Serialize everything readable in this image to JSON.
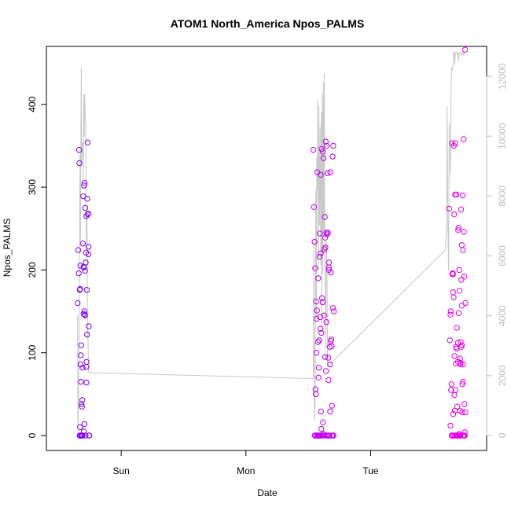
{
  "chart_data": {
    "type": "scatter",
    "title": "ATOM1 North_America Npos_PALMS",
    "xlabel": "Date",
    "ylabel": "Npos_PALMS",
    "x_unit": "day",
    "x_range": [
      -0.6,
      2.93
    ],
    "x_ticks": [
      {
        "value": 0,
        "label": "Sun"
      },
      {
        "value": 1,
        "label": "Mon"
      },
      {
        "value": 2,
        "label": "Tue"
      }
    ],
    "y_range": [
      -18,
      470
    ],
    "y_ticks": [
      0,
      100,
      200,
      300,
      400
    ],
    "y2_range": [
      -500,
      13000
    ],
    "y2_ticks": [
      0,
      2000,
      4000,
      6000,
      8000,
      10000,
      12000
    ],
    "colors": {
      "early": "#7f00ff",
      "late": "#e600e6",
      "secondary_line": "#c8c8c8"
    },
    "series": [
      {
        "kind": "points",
        "y_axis": "left",
        "points": [
          [
            -0.35,
            160
          ],
          [
            -0.345,
            224
          ],
          [
            -0.34,
            196
          ],
          [
            -0.338,
            345
          ],
          [
            -0.335,
            329
          ],
          [
            -0.333,
            176
          ],
          [
            -0.33,
            177
          ],
          [
            -0.328,
            205
          ],
          [
            -0.325,
            86
          ],
          [
            -0.322,
            65
          ],
          [
            -0.32,
            109
          ],
          [
            -0.318,
            0
          ],
          [
            -0.315,
            35
          ],
          [
            -0.312,
            43
          ],
          [
            -0.31,
            82
          ],
          [
            -0.308,
            232
          ],
          [
            -0.305,
            289
          ],
          [
            -0.302,
            204
          ],
          [
            -0.3,
            203
          ],
          [
            -0.298,
            302
          ],
          [
            -0.296,
            150
          ],
          [
            -0.294,
            305
          ],
          [
            -0.292,
            146
          ],
          [
            -0.29,
            199
          ],
          [
            -0.288,
            275
          ],
          [
            -0.285,
            209
          ],
          [
            -0.282,
            221
          ],
          [
            -0.28,
            265
          ],
          [
            -0.278,
            89
          ],
          [
            -0.276,
            176
          ],
          [
            -0.274,
            122
          ],
          [
            -0.272,
            286
          ],
          [
            -0.27,
            354
          ],
          [
            -0.268,
            267
          ],
          [
            -0.266,
            268
          ],
          [
            -0.264,
            219
          ],
          [
            -0.262,
            228
          ],
          [
            -0.26,
            132
          ],
          [
            -0.258,
            0
          ],
          [
            -0.256,
            0
          ],
          [
            -0.334,
            0
          ],
          [
            -0.33,
            10
          ],
          [
            -0.327,
            0
          ],
          [
            -0.318,
            38
          ],
          [
            -0.3,
            5
          ],
          [
            -0.295,
            14
          ],
          [
            -0.286,
            0
          ],
          [
            -0.279,
            64
          ],
          [
            -0.302,
            147
          ],
          [
            -0.29,
            145
          ],
          [
            -0.316,
            0
          ],
          [
            -0.31,
            0
          ],
          [
            -0.324,
            97
          ],
          [
            -0.28,
            83
          ],
          [
            1.54,
            345
          ],
          [
            1.545,
            276
          ],
          [
            1.55,
            234
          ],
          [
            1.552,
            0
          ],
          [
            1.555,
            202
          ],
          [
            1.558,
            56
          ],
          [
            1.56,
            50
          ],
          [
            1.562,
            162
          ],
          [
            1.565,
            141
          ],
          [
            1.567,
            0
          ],
          [
            1.57,
            151
          ],
          [
            1.572,
            318
          ],
          [
            1.575,
            0
          ],
          [
            1.578,
            113
          ],
          [
            1.58,
            190
          ],
          [
            1.582,
            70
          ],
          [
            1.585,
            0
          ],
          [
            1.588,
            115
          ],
          [
            1.59,
            216
          ],
          [
            1.592,
            244
          ],
          [
            1.595,
            143
          ],
          [
            1.598,
            129
          ],
          [
            1.6,
            315
          ],
          [
            1.602,
            29
          ],
          [
            1.605,
            124
          ],
          [
            1.607,
            346
          ],
          [
            1.61,
            166
          ],
          [
            1.612,
            0
          ],
          [
            1.615,
            161
          ],
          [
            1.617,
            343
          ],
          [
            1.62,
            0
          ],
          [
            1.622,
            335
          ],
          [
            1.625,
            0
          ],
          [
            1.627,
            145
          ],
          [
            1.63,
            225
          ],
          [
            1.632,
            264
          ],
          [
            1.635,
            239
          ],
          [
            1.637,
            227
          ],
          [
            1.64,
            355
          ],
          [
            1.642,
            78
          ],
          [
            1.645,
            137
          ],
          [
            1.647,
            350
          ],
          [
            1.65,
            243
          ],
          [
            1.652,
            0
          ],
          [
            1.655,
            317
          ],
          [
            1.657,
            245
          ],
          [
            1.66,
            94
          ],
          [
            1.662,
            67
          ],
          [
            1.665,
            200
          ],
          [
            1.667,
            209
          ],
          [
            1.67,
            0
          ],
          [
            1.672,
            107
          ],
          [
            1.675,
            29
          ],
          [
            1.677,
            318
          ],
          [
            1.68,
            114
          ],
          [
            1.682,
            197
          ],
          [
            1.685,
            116
          ],
          [
            1.687,
            108
          ],
          [
            1.69,
            36
          ],
          [
            1.692,
            0
          ],
          [
            1.695,
            337
          ],
          [
            1.697,
            154
          ],
          [
            1.7,
            350
          ],
          [
            1.702,
            0
          ],
          [
            1.705,
            150
          ],
          [
            1.555,
            0
          ],
          [
            1.565,
            100
          ],
          [
            1.575,
            0
          ],
          [
            1.585,
            82
          ],
          [
            1.598,
            0
          ],
          [
            1.605,
            8
          ],
          [
            1.618,
            16
          ],
          [
            1.635,
            95
          ],
          [
            1.645,
            245
          ],
          [
            1.665,
            203
          ],
          [
            1.675,
            86
          ],
          [
            1.69,
            0
          ],
          [
            1.7,
            0
          ],
          [
            1.6,
            220
          ],
          [
            1.62,
            2
          ],
          [
            1.64,
            0
          ],
          [
            1.66,
            0
          ],
          [
            1.58,
            0
          ],
          [
            1.59,
            0
          ],
          [
            2.63,
            274
          ],
          [
            2.635,
            115
          ],
          [
            2.64,
            146
          ],
          [
            2.642,
            150
          ],
          [
            2.645,
            55
          ],
          [
            2.648,
            62
          ],
          [
            2.65,
            0
          ],
          [
            2.652,
            353
          ],
          [
            2.655,
            195
          ],
          [
            2.657,
            196
          ],
          [
            2.66,
            173
          ],
          [
            2.662,
            26
          ],
          [
            2.665,
            167
          ],
          [
            2.667,
            350
          ],
          [
            2.67,
            267
          ],
          [
            2.672,
            49
          ],
          [
            2.675,
            0
          ],
          [
            2.677,
            291
          ],
          [
            2.68,
            353
          ],
          [
            2.682,
            87
          ],
          [
            2.685,
            107
          ],
          [
            2.687,
            291
          ],
          [
            2.69,
            105
          ],
          [
            2.692,
            130
          ],
          [
            2.695,
            35
          ],
          [
            2.697,
            0
          ],
          [
            2.7,
            89
          ],
          [
            2.702,
            248
          ],
          [
            2.705,
            251
          ],
          [
            2.707,
            148
          ],
          [
            2.71,
            200
          ],
          [
            2.712,
            175
          ],
          [
            2.715,
            30
          ],
          [
            2.717,
            93
          ],
          [
            2.72,
            0
          ],
          [
            2.722,
            113
          ],
          [
            2.725,
            273
          ],
          [
            2.727,
            188
          ],
          [
            2.73,
            157
          ],
          [
            2.732,
            109
          ],
          [
            2.735,
            62
          ],
          [
            2.737,
            290
          ],
          [
            2.74,
            65
          ],
          [
            2.742,
            0
          ],
          [
            2.745,
            358
          ],
          [
            2.747,
            246
          ],
          [
            2.75,
            192
          ],
          [
            2.752,
            38
          ],
          [
            2.755,
            0
          ],
          [
            2.757,
            466
          ],
          [
            2.76,
            160
          ],
          [
            2.655,
            0
          ],
          [
            2.665,
            0
          ],
          [
            2.675,
            30
          ],
          [
            2.685,
            0
          ],
          [
            2.695,
            0
          ],
          [
            2.705,
            0
          ],
          [
            2.715,
            0
          ],
          [
            2.725,
            107
          ],
          [
            2.735,
            28
          ],
          [
            2.745,
            0
          ],
          [
            2.755,
            4
          ],
          [
            2.66,
            195
          ],
          [
            2.672,
            96
          ],
          [
            2.69,
            0
          ],
          [
            2.7,
            0
          ],
          [
            2.71,
            2
          ],
          [
            2.72,
            88
          ],
          [
            2.73,
            230
          ],
          [
            2.74,
            224
          ],
          [
            2.75,
            0
          ],
          [
            2.64,
            12
          ],
          [
            2.65,
            0
          ],
          [
            2.68,
            55
          ],
          [
            2.7,
            112
          ],
          [
            2.72,
            86
          ],
          [
            2.74,
            86
          ],
          [
            2.76,
            28
          ]
        ]
      },
      {
        "kind": "line",
        "y_axis": "right",
        "points": [
          [
            -0.35,
            4000
          ],
          [
            -0.348,
            600
          ],
          [
            -0.345,
            300
          ],
          [
            -0.34,
            2200
          ],
          [
            -0.335,
            5000
          ],
          [
            -0.33,
            9400
          ],
          [
            -0.327,
            6500
          ],
          [
            -0.324,
            9800
          ],
          [
            -0.32,
            12300
          ],
          [
            -0.317,
            9000
          ],
          [
            -0.314,
            9800
          ],
          [
            -0.31,
            9400
          ],
          [
            -0.307,
            9800
          ],
          [
            -0.304,
            8500
          ],
          [
            -0.3,
            11400
          ],
          [
            -0.296,
            10000
          ],
          [
            -0.293,
            11400
          ],
          [
            -0.29,
            10900
          ],
          [
            -0.287,
            10500
          ],
          [
            -0.284,
            10500
          ],
          [
            -0.281,
            7000
          ],
          [
            -0.278,
            6200
          ],
          [
            -0.275,
            7300
          ],
          [
            -0.272,
            6000
          ],
          [
            -0.27,
            3200
          ],
          [
            -0.267,
            3500
          ],
          [
            -0.263,
            2200
          ],
          [
            -0.26,
            2100
          ],
          [
            1.54,
            1900
          ],
          [
            1.542,
            3000
          ],
          [
            1.545,
            6500
          ],
          [
            1.548,
            1000
          ],
          [
            1.552,
            500
          ],
          [
            1.556,
            1700
          ],
          [
            1.56,
            8200
          ],
          [
            1.565,
            4000
          ],
          [
            1.568,
            9300
          ],
          [
            1.572,
            8200
          ],
          [
            1.575,
            11200
          ],
          [
            1.58,
            5500
          ],
          [
            1.585,
            11000
          ],
          [
            1.59,
            7000
          ],
          [
            1.595,
            10300
          ],
          [
            1.6,
            5700
          ],
          [
            1.605,
            10800
          ],
          [
            1.608,
            3600
          ],
          [
            1.612,
            11400
          ],
          [
            1.617,
            5400
          ],
          [
            1.62,
            11800
          ],
          [
            1.625,
            6800
          ],
          [
            1.628,
            12100
          ],
          [
            1.632,
            6400
          ],
          [
            1.636,
            4700
          ],
          [
            1.64,
            2900
          ],
          [
            1.645,
            6500
          ],
          [
            1.65,
            5800
          ],
          [
            1.655,
            2300
          ],
          [
            2.6,
            6200
          ],
          [
            2.61,
            7000
          ],
          [
            2.612,
            11000
          ],
          [
            2.616,
            9000
          ],
          [
            2.62,
            6900
          ],
          [
            2.625,
            5500
          ],
          [
            2.63,
            10400
          ],
          [
            2.635,
            9600
          ],
          [
            2.64,
            8700
          ],
          [
            2.645,
            11600
          ],
          [
            2.65,
            12300
          ],
          [
            2.655,
            12200
          ],
          [
            2.66,
            12300
          ],
          [
            2.665,
            12800
          ],
          [
            2.67,
            12800
          ],
          [
            2.675,
            12400
          ],
          [
            2.68,
            12800
          ],
          [
            2.685,
            12800
          ],
          [
            2.69,
            12800
          ],
          [
            2.695,
            12700
          ],
          [
            2.7,
            12800
          ],
          [
            2.705,
            12500
          ],
          [
            2.71,
            12800
          ],
          [
            2.715,
            12800
          ],
          [
            2.72,
            12800
          ],
          [
            2.725,
            12700
          ],
          [
            2.73,
            12700
          ],
          [
            2.735,
            12800
          ],
          [
            2.74,
            12800
          ],
          [
            2.745,
            12700
          ],
          [
            2.75,
            12800
          ],
          [
            2.755,
            12800
          ],
          [
            2.76,
            12800
          ]
        ]
      }
    ]
  }
}
